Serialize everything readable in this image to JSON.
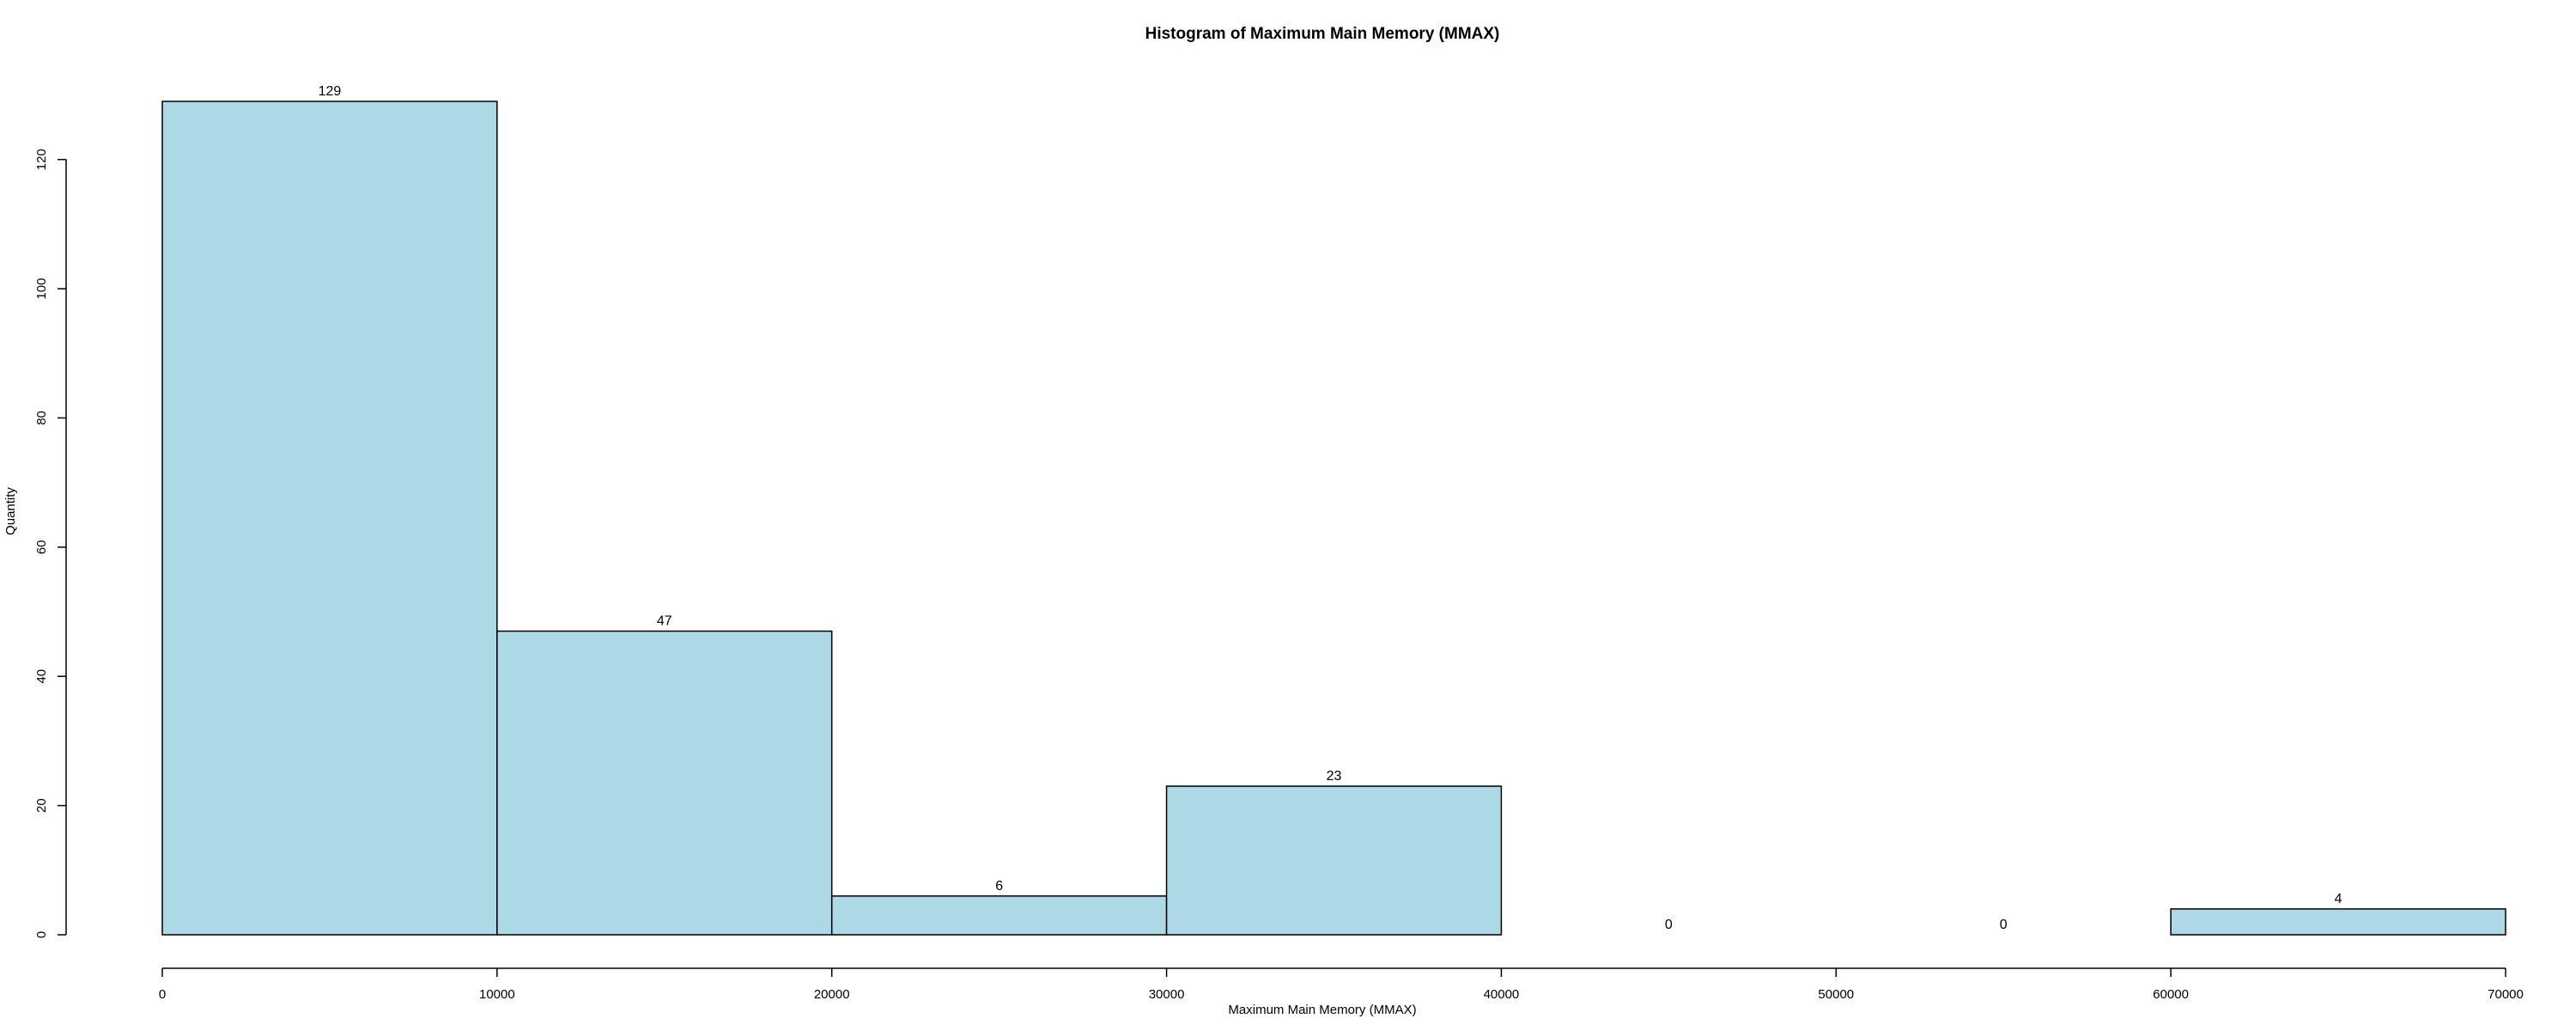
{
  "chart_data": {
    "type": "bar",
    "title": "Histogram of Maximum Main Memory (MMAX)",
    "xlabel": "Maximum Main Memory (MMAX)",
    "ylabel": "Quantity",
    "bins": [
      {
        "start": 0,
        "end": 10000,
        "value": 129
      },
      {
        "start": 10000,
        "end": 20000,
        "value": 47
      },
      {
        "start": 20000,
        "end": 30000,
        "value": 6
      },
      {
        "start": 30000,
        "end": 40000,
        "value": 23
      },
      {
        "start": 40000,
        "end": 50000,
        "value": 0
      },
      {
        "start": 50000,
        "end": 60000,
        "value": 0
      },
      {
        "start": 60000,
        "end": 70000,
        "value": 4
      }
    ],
    "xlim": [
      0,
      70000
    ],
    "ylim": [
      0,
      129
    ],
    "x_ticks": [
      0,
      10000,
      20000,
      30000,
      40000,
      50000,
      60000,
      70000
    ],
    "y_ticks": [
      0,
      20,
      40,
      60,
      80,
      100,
      120
    ],
    "bar_color": "#add8e6",
    "grid": false,
    "data_labels": true
  }
}
